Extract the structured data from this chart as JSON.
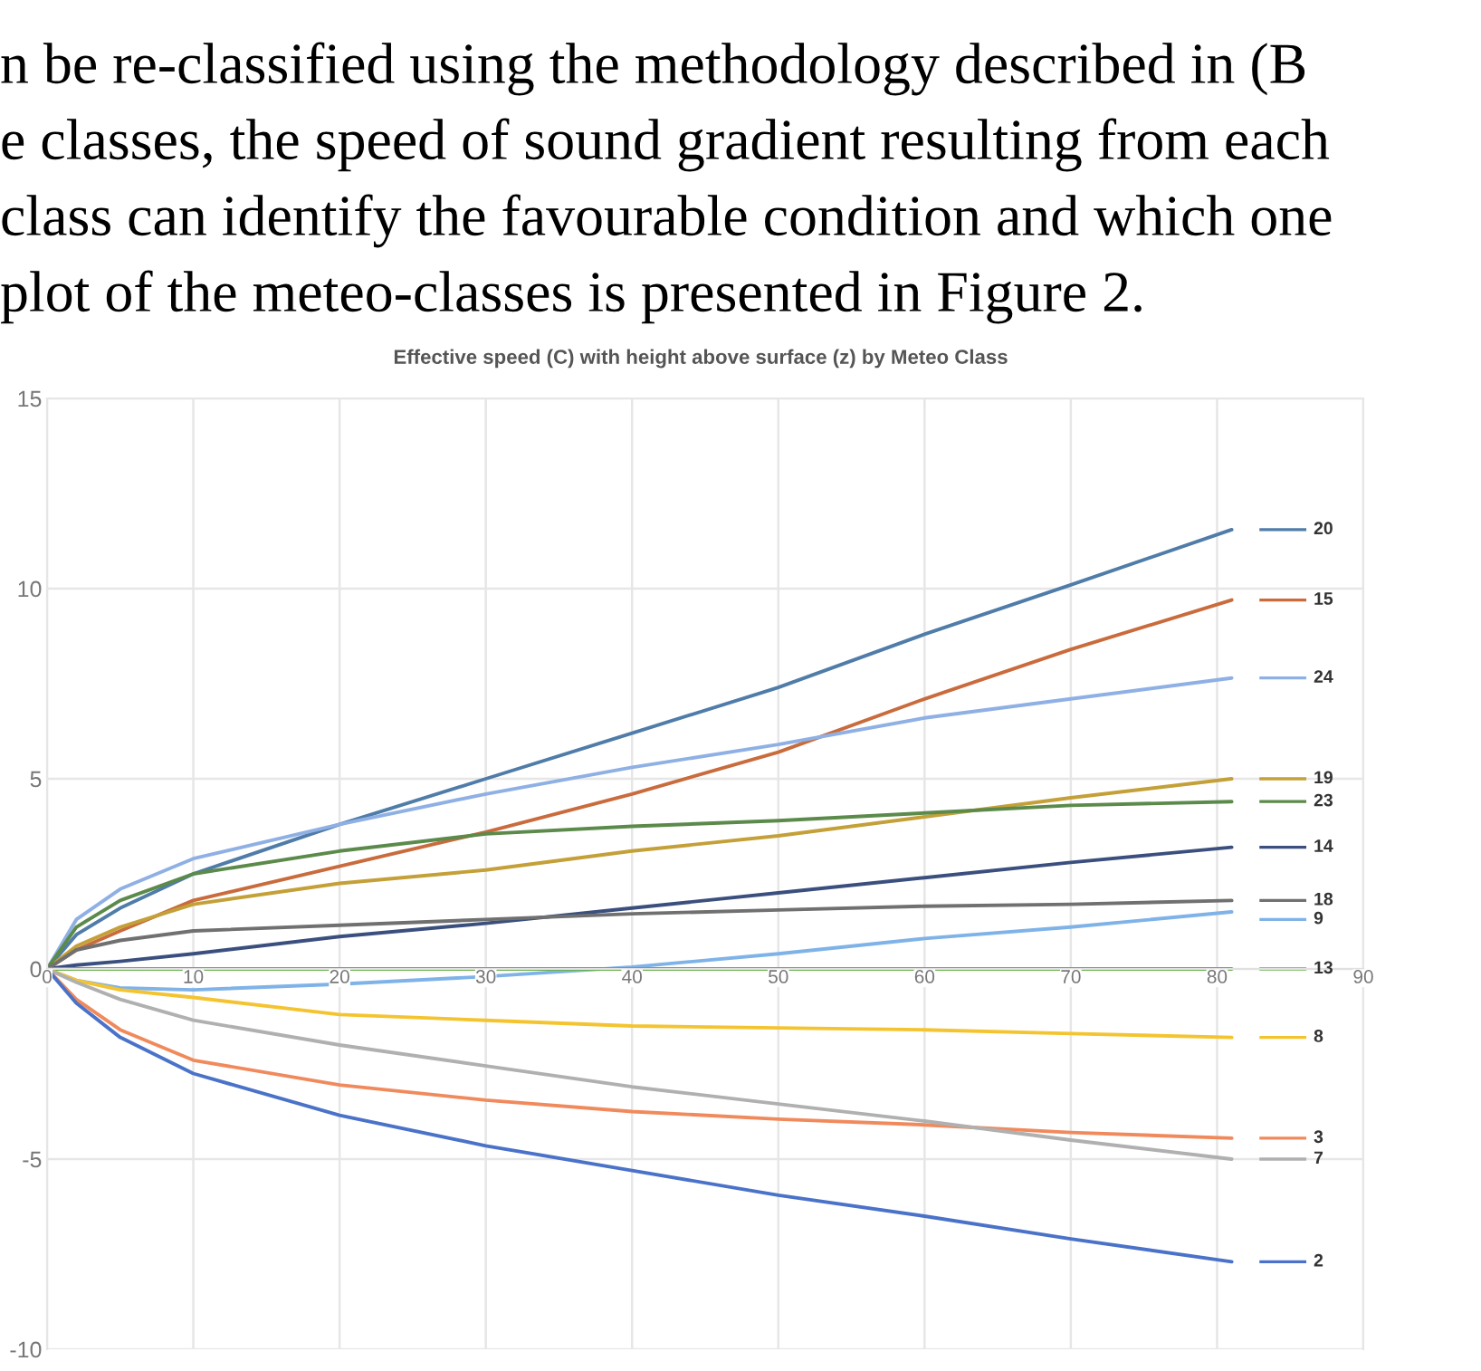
{
  "chart_data": {
    "type": "line",
    "title": "Effective speed (C) with height above surface (z) by Meteo Class",
    "annotations": [
      "n be re-classified using the methodology described in (B",
      "e classes, the speed of sound gradient resulting from each",
      "class can identify the favourable condition and which one",
      "plot of the meteo-classes is presented in Figure 2."
    ],
    "x": [
      0,
      2,
      5,
      10,
      20,
      30,
      40,
      50,
      60,
      70,
      81
    ],
    "series": [
      {
        "name": "20",
        "color": "#4f7ca8",
        "values": [
          0,
          0.9,
          1.6,
          2.5,
          3.8,
          5.0,
          6.2,
          7.4,
          8.8,
          10.1,
          11.55
        ]
      },
      {
        "name": "15",
        "color": "#c96b3c",
        "values": [
          0,
          0.5,
          1.0,
          1.8,
          2.7,
          3.6,
          4.6,
          5.7,
          7.1,
          8.4,
          9.7
        ]
      },
      {
        "name": "24",
        "color": "#8fb0e4",
        "values": [
          0,
          1.3,
          2.1,
          2.9,
          3.8,
          4.6,
          5.3,
          5.9,
          6.6,
          7.1,
          7.65
        ]
      },
      {
        "name": "19",
        "color": "#c4a038",
        "values": [
          0,
          0.6,
          1.1,
          1.7,
          2.25,
          2.6,
          3.1,
          3.5,
          4.0,
          4.5,
          5.0
        ]
      },
      {
        "name": "23",
        "color": "#5b8a4a",
        "values": [
          0,
          1.1,
          1.8,
          2.5,
          3.1,
          3.55,
          3.75,
          3.9,
          4.1,
          4.3,
          4.4
        ]
      },
      {
        "name": "14",
        "color": "#3b4f7e",
        "values": [
          0,
          0.1,
          0.2,
          0.4,
          0.85,
          1.2,
          1.6,
          2.0,
          2.4,
          2.8,
          3.2
        ]
      },
      {
        "name": "18",
        "color": "#707070",
        "values": [
          0,
          0.5,
          0.75,
          1.0,
          1.15,
          1.3,
          1.45,
          1.55,
          1.65,
          1.7,
          1.8
        ]
      },
      {
        "name": "9",
        "color": "#7fb3e8",
        "values": [
          0,
          -0.3,
          -0.5,
          -0.55,
          -0.4,
          -0.2,
          0.05,
          0.4,
          0.8,
          1.1,
          1.5
        ]
      },
      {
        "name": "13",
        "color": "#6ab04c",
        "values": [
          0,
          0,
          0,
          0,
          0,
          0,
          0,
          0,
          0,
          0,
          0
        ]
      },
      {
        "name": "8",
        "color": "#f4c430",
        "values": [
          0,
          -0.3,
          -0.55,
          -0.75,
          -1.2,
          -1.35,
          -1.5,
          -1.55,
          -1.6,
          -1.7,
          -1.8
        ]
      },
      {
        "name": "3",
        "color": "#f08a5d",
        "values": [
          0,
          -0.8,
          -1.6,
          -2.4,
          -3.05,
          -3.45,
          -3.75,
          -3.95,
          -4.1,
          -4.3,
          -4.45
        ]
      },
      {
        "name": "7",
        "color": "#b0b0b0",
        "values": [
          0,
          -0.35,
          -0.8,
          -1.35,
          -2.0,
          -2.55,
          -3.1,
          -3.55,
          -4.0,
          -4.5,
          -5.0
        ]
      },
      {
        "name": "2",
        "color": "#4a72c8",
        "values": [
          0,
          -0.9,
          -1.8,
          -2.75,
          -3.85,
          -4.65,
          -5.3,
          -5.95,
          -6.5,
          -7.1,
          -7.7
        ]
      }
    ],
    "xlim": [
      0,
      90
    ],
    "xticks": [
      0,
      10,
      20,
      30,
      40,
      50,
      60,
      70,
      80,
      90
    ],
    "ylim": [
      -10,
      15
    ],
    "yticks": [
      15,
      10,
      5,
      0,
      -5,
      -10
    ],
    "grid": true,
    "legend": "right"
  }
}
